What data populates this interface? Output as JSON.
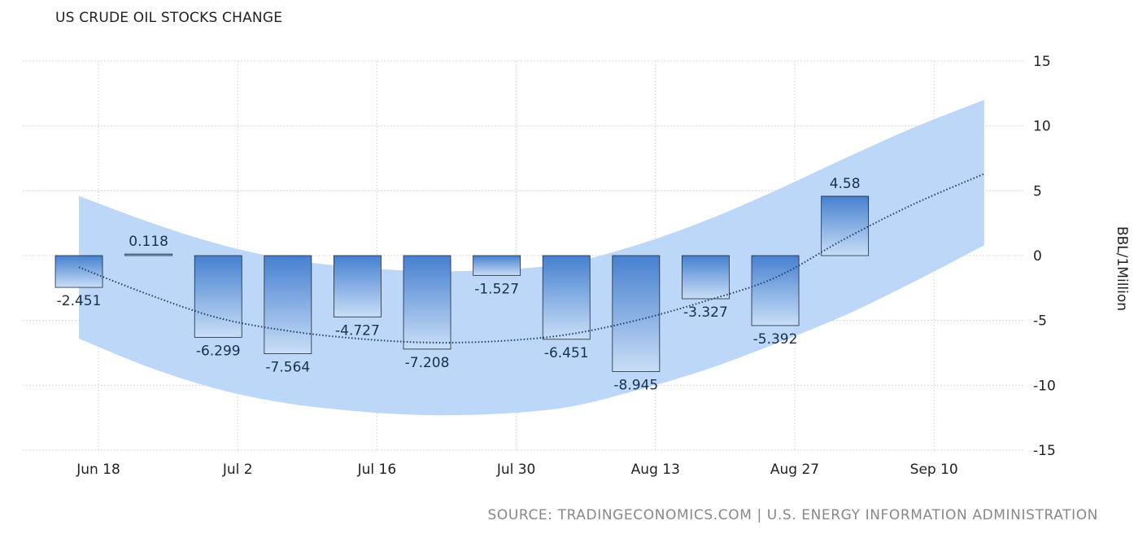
{
  "chart_data": {
    "type": "bar",
    "title": "US CRUDE OIL STOCKS CHANGE",
    "ylabel": "BBL/1Million",
    "ylim": [
      -15,
      15
    ],
    "yticks": [
      15,
      10,
      5,
      0,
      -5,
      -10,
      -15
    ],
    "xtick_labels": [
      "Jun 18",
      "Jul 2",
      "Jul 16",
      "Jul 30",
      "Aug 13",
      "Aug 27",
      "Sep 10"
    ],
    "grid": true,
    "values": [
      -2.451,
      0.118,
      -6.299,
      -7.564,
      -4.727,
      -7.208,
      -1.527,
      -6.451,
      -8.945,
      -3.327,
      -5.392,
      4.58
    ],
    "value_labels": [
      "-2.451",
      "0.118",
      "-6.299",
      "-7.564",
      "-4.727",
      "-7.208",
      "-1.527",
      "-6.451",
      "-8.945",
      "-3.327",
      "-5.392",
      "4.58"
    ],
    "trend": [
      -0.9,
      -3.0,
      -4.8,
      -5.8,
      -6.4,
      -6.7,
      -6.6,
      -6.1,
      -5.0,
      -3.5,
      -1.7,
      1.3,
      4.0,
      6.3
    ],
    "band_upper": [
      4.6,
      2.6,
      0.9,
      -0.3,
      -0.9,
      -1.2,
      -1.1,
      -0.6,
      0.8,
      2.7,
      5.0,
      7.5,
      9.9,
      12.0
    ],
    "band_lower": [
      -6.4,
      -8.6,
      -10.3,
      -11.4,
      -12.0,
      -12.3,
      -12.2,
      -11.7,
      -10.4,
      -8.8,
      -6.8,
      -4.6,
      -2.0,
      0.8
    ],
    "colors": {
      "bar": "#4a88d6",
      "band": "#b8d5f7",
      "trend": "#1f3f6e",
      "grid": "#d8d8d8"
    },
    "source": "SOURCE: TRADINGECONOMICS.COM | U.S. ENERGY INFORMATION ADMINISTRATION"
  }
}
